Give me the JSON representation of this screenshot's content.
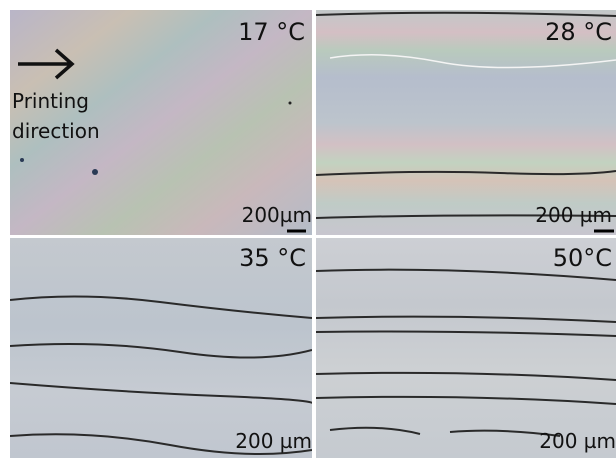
{
  "annotation": {
    "lines": [
      "Printing",
      "direction"
    ]
  },
  "panels": [
    {
      "temperature": "17 °C",
      "scale_bar": "200µm"
    },
    {
      "temperature": "28 °C",
      "scale_bar": "200 µm"
    },
    {
      "temperature": "35 °C",
      "scale_bar": "200 µm"
    },
    {
      "temperature": "50°C",
      "scale_bar": "200 µm"
    }
  ]
}
